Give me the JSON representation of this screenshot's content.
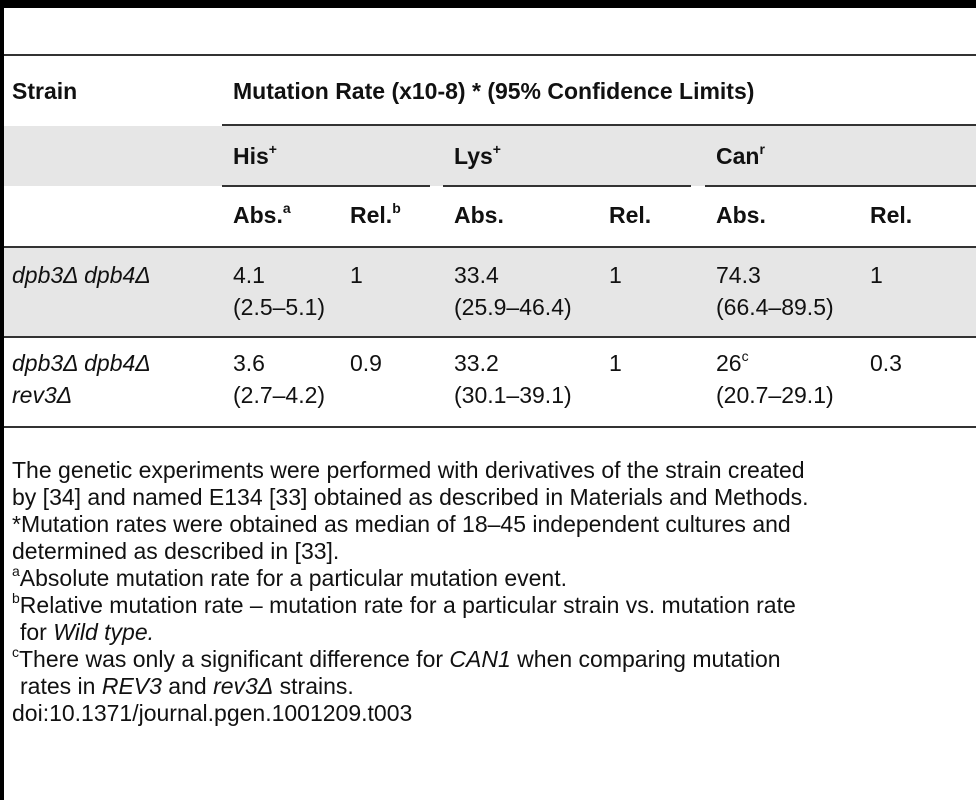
{
  "header": {
    "strain": "Strain",
    "mutation_rate": "Mutation Rate (x10-8) * (95% Confidence Limits)"
  },
  "groups": [
    {
      "name": "His",
      "sup": "+"
    },
    {
      "name": "Lys",
      "sup": "+"
    },
    {
      "name": "Can",
      "sup": "r"
    }
  ],
  "subheaders": {
    "abs": "Abs.",
    "abs_sup_his": "a",
    "rel": "Rel.",
    "rel_sup_his": "b"
  },
  "rows": [
    {
      "strain_line1": "dpb3Δ dpb4Δ",
      "strain_line2": "",
      "his_abs": "4.1",
      "his_ci": "(2.5–5.1)",
      "his_rel": "1",
      "lys_abs": "33.4",
      "lys_ci": "(25.9–46.4)",
      "lys_rel": "1",
      "can_abs": "74.3",
      "can_ci": "(66.4–89.5)",
      "can_rel": "1"
    },
    {
      "strain_line1": "dpb3Δ dpb4Δ",
      "strain_line2": "rev3Δ",
      "his_abs": "3.6",
      "his_ci": "(2.7–4.2)",
      "his_rel": "0.9",
      "lys_abs": "33.2",
      "lys_ci": "(30.1–39.1)",
      "lys_rel": "1",
      "can_abs": "26",
      "can_abs_sup": "c",
      "can_ci": "(20.7–29.1)",
      "can_rel": "0.3"
    }
  ],
  "notes": {
    "line1": "The genetic experiments were performed with derivatives of the strain created",
    "line2": "by [34] and named E134 [33] obtained as described in Materials and Methods.",
    "line3": "*Mutation rates were obtained as median of 18–45 independent cultures and",
    "line4": "determined as described in [33].",
    "a_mark": "a",
    "a_text": "Absolute mutation rate for a particular mutation event.",
    "b_mark": "b",
    "b_text": "Relative mutation rate – mutation rate for a particular strain vs. mutation rate",
    "b_text2_pre": "for ",
    "b_text2_em": "Wild type.",
    "c_mark": "c",
    "c_text_pre": "There was only a significant difference for ",
    "c_text_em": "CAN1",
    "c_text_post": " when comparing mutation",
    "c_text2_pre": "rates in ",
    "c_text2_em1": "REV3",
    "c_text2_mid": " and ",
    "c_text2_em2": "rev3Δ",
    "c_text2_post": " strains.",
    "doi": "doi:10.1371/journal.pgen.1001209.t003"
  }
}
